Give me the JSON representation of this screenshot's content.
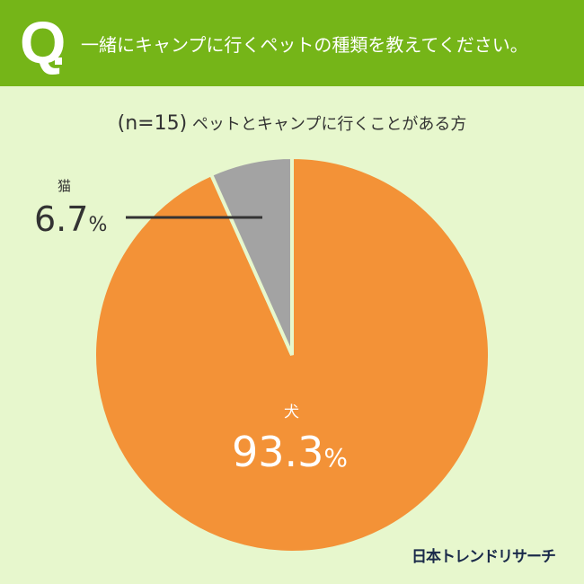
{
  "header": {
    "q_mark": "Q",
    "title": "一緒にキャンプに行くペットの種類を教えてください。"
  },
  "subtitle": {
    "n": "(n=15)",
    "text": "ペットとキャンプに行くことがある方"
  },
  "chart_data": {
    "type": "pie",
    "title": "一緒にキャンプに行くペットの種類を教えてください。",
    "subtitle": "(n=15) ペットとキャンプに行くことがある方",
    "categories": [
      "犬",
      "猫"
    ],
    "values": [
      93.3,
      6.7
    ],
    "unit": "%",
    "colors": [
      "#f39237",
      "#a3a3a3"
    ],
    "labels": [
      {
        "name": "犬",
        "value": "93.3",
        "unit": "%"
      },
      {
        "name": "猫",
        "value": "6.7",
        "unit": "%"
      }
    ]
  },
  "logo": "日本トレンドリサーチ"
}
